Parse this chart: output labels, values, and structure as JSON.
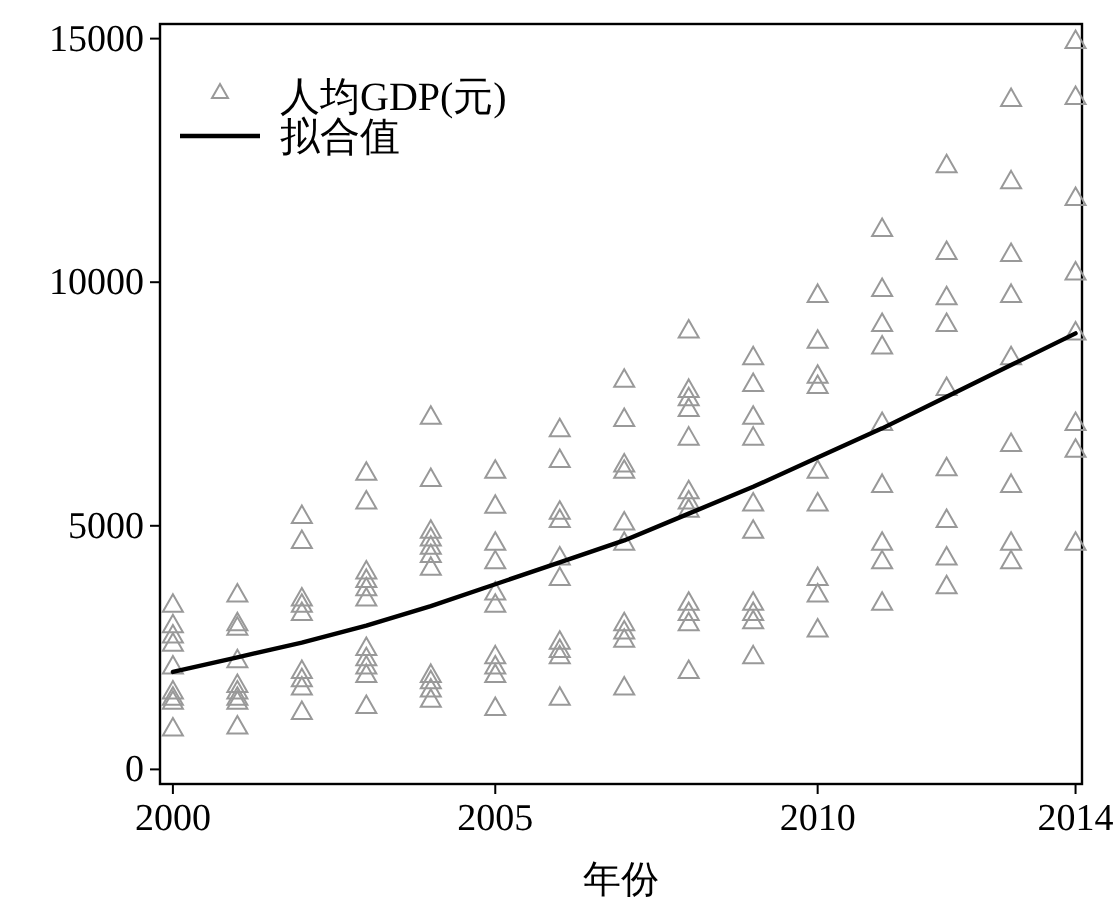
{
  "chart_data": {
    "type": "scatter",
    "xlabel": "年份",
    "xlim": [
      1999.8,
      2014.1
    ],
    "ylim": [
      -300,
      15300
    ],
    "xticks": [
      2000,
      2005,
      2010,
      2014
    ],
    "yticks": [
      0,
      5000,
      10000,
      15000
    ],
    "legend": "top left",
    "grid": false,
    "series": [
      {
        "name": "人均GDP(元)",
        "color": "#999999",
        "marker": "triangle",
        "x": [
          2000,
          2000,
          2000,
          2000,
          2000,
          2000,
          2000,
          2000,
          2000,
          2001,
          2001,
          2001,
          2001,
          2001,
          2001,
          2001,
          2001,
          2001,
          2002,
          2002,
          2002,
          2002,
          2002,
          2002,
          2002,
          2002,
          2002,
          2003,
          2003,
          2003,
          2003,
          2003,
          2003,
          2003,
          2003,
          2003,
          2003,
          2003,
          2004,
          2004,
          2004,
          2004,
          2004,
          2004,
          2004,
          2004,
          2004,
          2004,
          2004,
          2005,
          2005,
          2005,
          2005,
          2005,
          2005,
          2005,
          2005,
          2005,
          2005,
          2006,
          2006,
          2006,
          2006,
          2006,
          2006,
          2006,
          2006,
          2006,
          2006,
          2007,
          2007,
          2007,
          2007,
          2007,
          2007,
          2007,
          2007,
          2007,
          2007,
          2008,
          2008,
          2008,
          2008,
          2008,
          2008,
          2008,
          2008,
          2008,
          2008,
          2008,
          2008,
          2009,
          2009,
          2009,
          2009,
          2009,
          2009,
          2009,
          2009,
          2009,
          2009,
          2010,
          2010,
          2010,
          2010,
          2010,
          2010,
          2010,
          2010,
          2010,
          2011,
          2011,
          2011,
          2011,
          2011,
          2011,
          2011,
          2011,
          2011,
          2012,
          2012,
          2012,
          2012,
          2012,
          2012,
          2012,
          2012,
          2012,
          2013,
          2013,
          2013,
          2013,
          2013,
          2013,
          2013,
          2013,
          2013,
          2014,
          2014,
          2014,
          2014,
          2014,
          2014,
          2014,
          2014
        ],
        "values": [
          3390,
          2970,
          2760,
          2590,
          2120,
          1610,
          1480,
          1400,
          850,
          3600,
          3010,
          2920,
          2250,
          1740,
          1610,
          1480,
          1400,
          890,
          5210,
          4700,
          3520,
          3390,
          3220,
          2030,
          1860,
          1690,
          1190,
          6100,
          5510,
          4070,
          3900,
          3730,
          3520,
          2500,
          2290,
          2120,
          1950,
          1310,
          7250,
          5970,
          4910,
          4750,
          4580,
          4410,
          4150,
          1950,
          1820,
          1650,
          1440,
          6140,
          5420,
          4660,
          4280,
          3640,
          3390,
          2330,
          2120,
          1950,
          1270,
          6990,
          6360,
          5300,
          5130,
          4360,
          3940,
          2630,
          2460,
          2330,
          1480,
          8010,
          7200,
          6270,
          6140,
          5080,
          4660,
          3010,
          2840,
          2670,
          1690,
          9020,
          7800,
          7630,
          7410,
          6820,
          5720,
          5510,
          5340,
          3430,
          3220,
          3010,
          2030,
          8470,
          7920,
          7250,
          6820,
          5470,
          4910,
          3430,
          3220,
          3050,
          2330,
          9750,
          8810,
          8090,
          7880,
          6140,
          5470,
          3940,
          3600,
          2880,
          11100,
          9870,
          9150,
          8690,
          7120,
          5850,
          4660,
          4280,
          3430,
          12410,
          10630,
          9700,
          9150,
          7840,
          6190,
          5130,
          4360,
          3770,
          13770,
          12080,
          10590,
          9750,
          8470,
          6690,
          5850,
          4660,
          4280,
          14960,
          13810,
          11740,
          10210,
          8980,
          7120,
          6570,
          4660
        ]
      },
      {
        "name": "拟合值",
        "type": "line",
        "color": "#000000",
        "line_style": "solid",
        "marker": "none",
        "x": [
          2000,
          2001,
          2002,
          2003,
          2004,
          2005,
          2006,
          2007,
          2008,
          2009,
          2010,
          2011,
          2012,
          2013,
          2014
        ],
        "values": [
          2000,
          2300,
          2600,
          2950,
          3350,
          3800,
          4250,
          4700,
          5250,
          5800,
          6400,
          7000,
          7650,
          8300,
          8950
        ]
      }
    ]
  }
}
